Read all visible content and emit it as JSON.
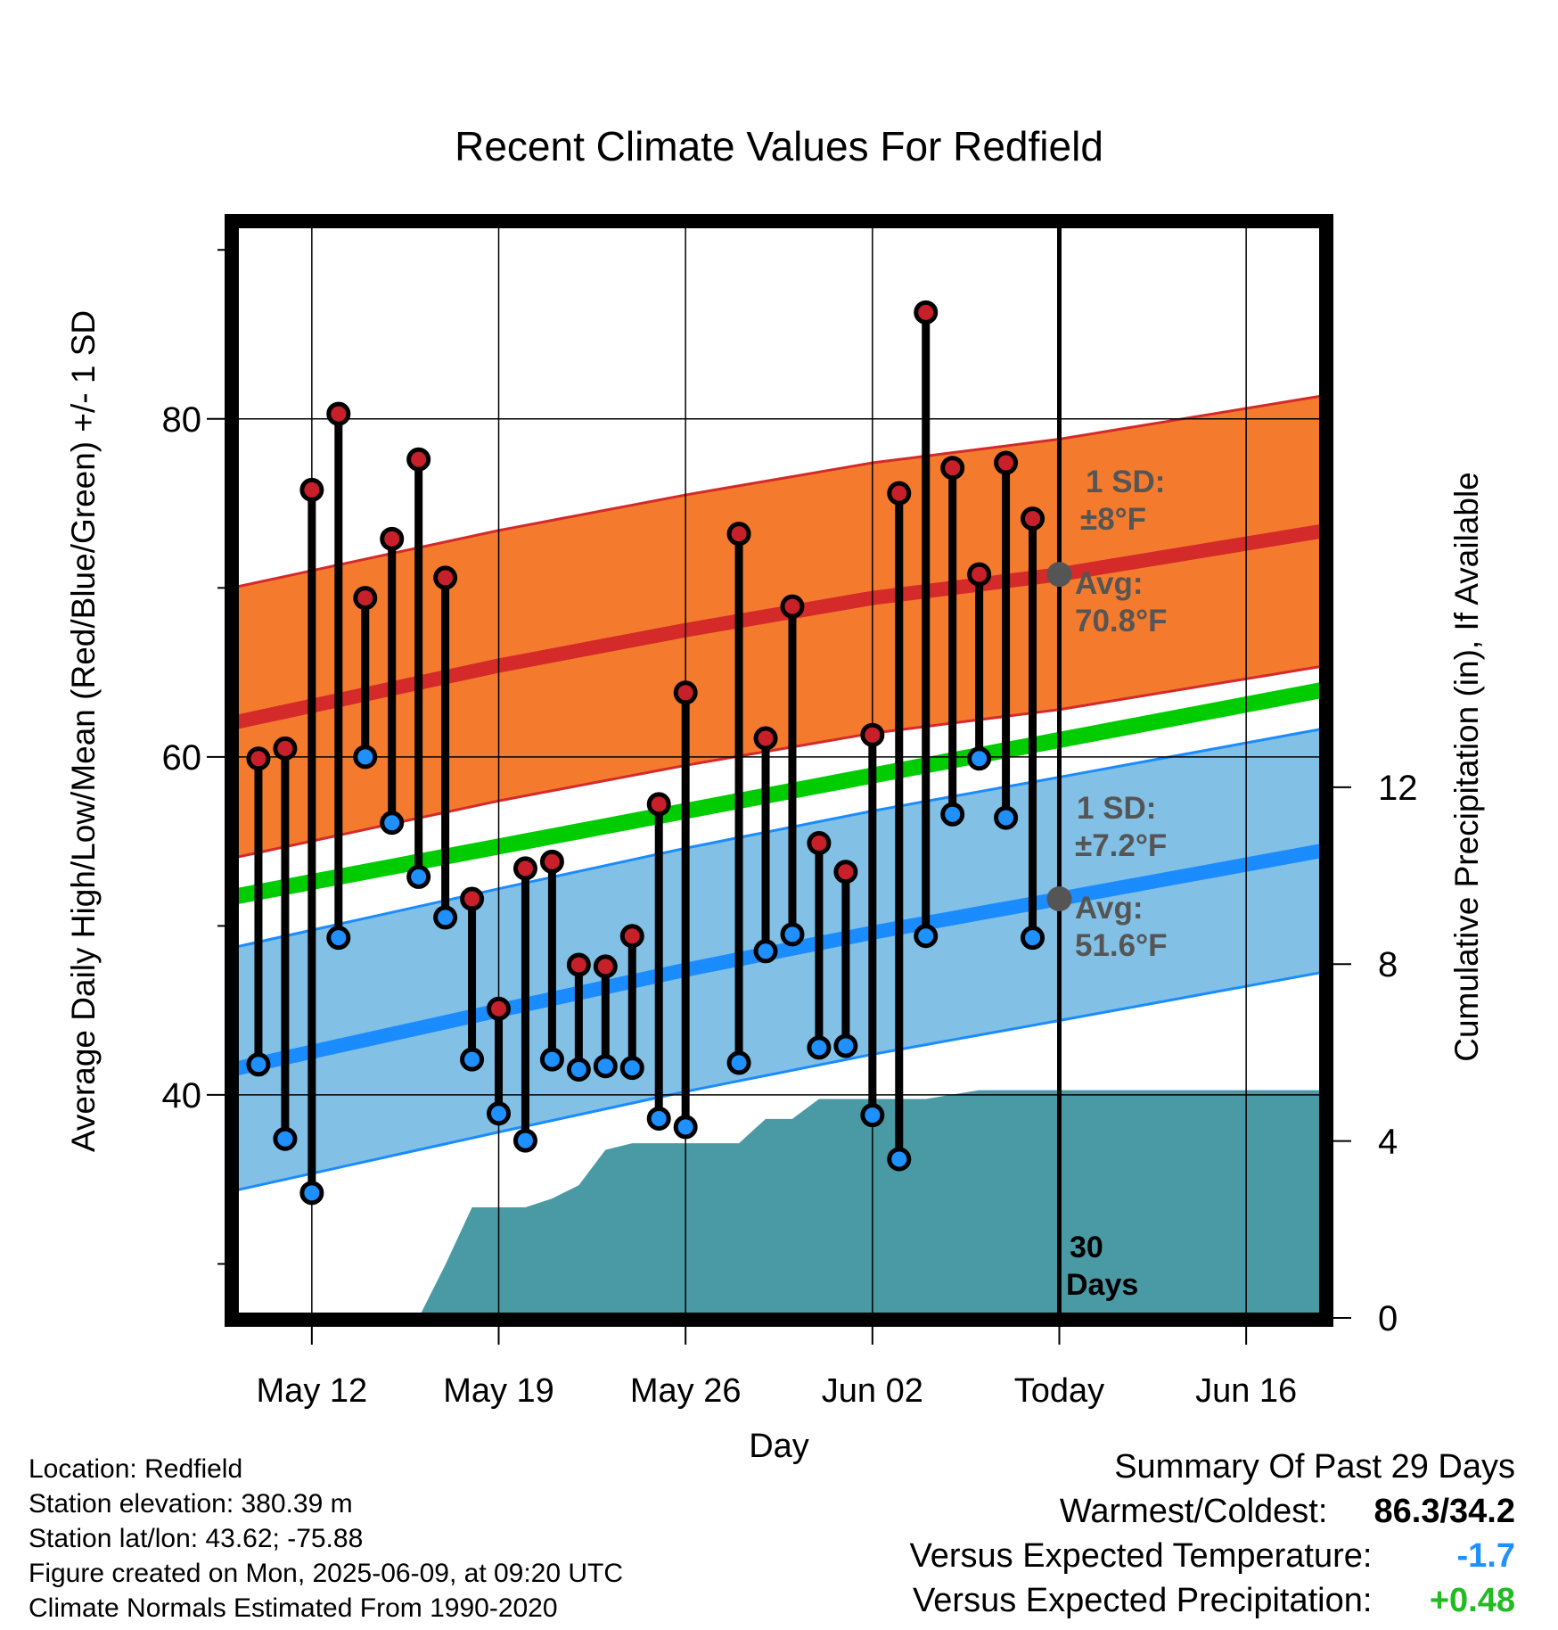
{
  "chart_data": {
    "type": "line",
    "title": "Recent Climate Values For Redfield",
    "xlabel": "Day",
    "ylabel": "Average Daily High/Low/Mean (Red/Blue/Green) +/- 1 SD",
    "y2label": "Cumulative Precipitation (in), If Available",
    "x_ticks": [
      "May 12",
      "May 19",
      "May 26",
      "Jun 02",
      "Today",
      "Jun 16"
    ],
    "xlim": [
      "2025-05-09",
      "2025-06-19"
    ],
    "ylim": [
      26.7,
      91.7
    ],
    "y_ticks": [
      40,
      60,
      80
    ],
    "y2lim": [
      -0.04,
      24.8
    ],
    "y2_ticks": [
      0,
      4,
      8,
      12
    ],
    "grid": true,
    "days": [
      "2025-05-10",
      "2025-05-11",
      "2025-05-12",
      "2025-05-13",
      "2025-05-14",
      "2025-05-15",
      "2025-05-16",
      "2025-05-17",
      "2025-05-18",
      "2025-05-19",
      "2025-05-20",
      "2025-05-21",
      "2025-05-22",
      "2025-05-23",
      "2025-05-24",
      "2025-05-25",
      "2025-05-26",
      "2025-05-27",
      "2025-05-28",
      "2025-05-29",
      "2025-05-30",
      "2025-05-31",
      "2025-06-01",
      "2025-06-02",
      "2025-06-03",
      "2025-06-04",
      "2025-06-05",
      "2025-06-06",
      "2025-06-07",
      "2025-06-08"
    ],
    "highs": [
      59.9,
      60.5,
      75.8,
      80.3,
      69.4,
      72.9,
      77.6,
      70.6,
      51.6,
      45.1,
      53.4,
      53.8,
      47.7,
      47.6,
      49.4,
      57.2,
      63.8,
      null,
      73.2,
      61.1,
      68.9,
      54.9,
      53.2,
      61.3,
      75.6,
      86.3,
      77.1,
      70.8,
      77.4,
      74.1
    ],
    "lows": [
      41.8,
      37.4,
      34.2,
      49.3,
      60.0,
      56.1,
      52.9,
      50.5,
      42.1,
      38.9,
      37.3,
      42.1,
      41.5,
      41.7,
      41.6,
      38.6,
      38.1,
      null,
      41.9,
      48.5,
      49.5,
      42.8,
      42.9,
      38.8,
      36.2,
      49.4,
      56.6,
      59.9,
      56.4,
      49.3
    ],
    "normal_high": {
      "x": [
        "2025-05-09",
        "2025-05-19",
        "2025-05-26",
        "2025-06-02",
        "2025-06-09",
        "2025-06-19"
      ],
      "values": [
        62.0,
        65.4,
        67.5,
        69.4,
        70.8,
        73.4
      ]
    },
    "normal_low": {
      "x": [
        "2025-05-09",
        "2025-05-19",
        "2025-05-26",
        "2025-06-02",
        "2025-06-09",
        "2025-06-19"
      ],
      "values": [
        41.5,
        45.0,
        47.4,
        49.6,
        51.6,
        54.5
      ]
    },
    "normal_mean": {
      "x": [
        "2025-05-09",
        "2025-06-19"
      ],
      "values": [
        51.7,
        64.0
      ]
    },
    "high_sd": 8,
    "low_sd": 7.2,
    "precip_cumulative": {
      "x": [
        "2025-05-16",
        "2025-05-17",
        "2025-05-18",
        "2025-05-20",
        "2025-05-21",
        "2025-05-22",
        "2025-05-23",
        "2025-05-24",
        "2025-05-28",
        "2025-05-29",
        "2025-05-30",
        "2025-05-31",
        "2025-06-04",
        "2025-06-05",
        "2025-06-06",
        "2025-06-19"
      ],
      "values": [
        0.0,
        1.2,
        2.5,
        2.5,
        2.7,
        3.0,
        3.8,
        3.95,
        3.95,
        4.5,
        4.5,
        4.95,
        4.95,
        5.05,
        5.15,
        5.15
      ]
    },
    "annotations": {
      "high_sd_label": "1 SD:",
      "high_sd_value": "±8°F",
      "high_avg_label": "Avg:",
      "high_avg_value": "70.8°F",
      "low_sd_label": "1 SD:",
      "low_sd_value": "±7.2°F",
      "low_avg_label": "Avg:",
      "low_avg_value": "51.6°F",
      "window_label_1": "30",
      "window_label_2": "Days"
    },
    "colors": {
      "high_band": "#f47b2e",
      "high_line": "#d42a2a",
      "low_band": "#82c0e6",
      "low_line": "#1a8cff",
      "mean_line": "#00cc00",
      "precip": "#4a9aa5",
      "high_dot": "#c8202a",
      "low_dot": "#1e90ff"
    }
  },
  "footer": {
    "location": "Location: Redfield",
    "elevation": "Station elevation: 380.39 m",
    "latlon": "Station lat/lon: 43.62; -75.88",
    "created": "Figure created on Mon, 2025-06-09, at 09:20 UTC",
    "normals": "Climate Normals Estimated From 1990-2020"
  },
  "summary": {
    "title": "Summary Of Past 29 Days",
    "warmest_label": "Warmest/Coldest:",
    "warmest_value": "86.3/34.2",
    "temp_label": "Versus Expected Temperature:",
    "temp_value": "-1.7",
    "temp_color": "#1e90ff",
    "precip_label": "Versus Expected Precipitation:",
    "precip_value": "+0.48",
    "precip_color": "#22bb22"
  }
}
